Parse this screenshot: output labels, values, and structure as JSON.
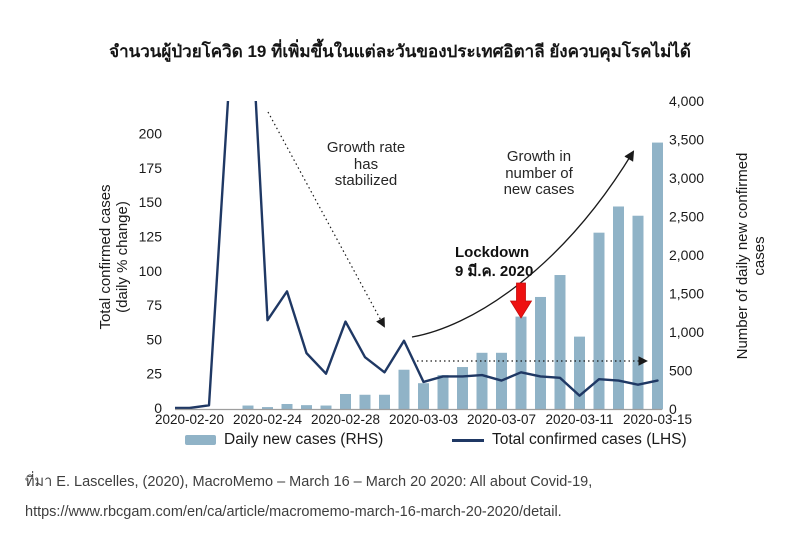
{
  "title": "จำนวนผู้ป่วยโควิด 19 ที่เพิ่มขึ้นในแต่ละวันของประเทศอิตาลี ยังควบคุมโรคไม่ได้",
  "colors": {
    "bar": "#90b3c7",
    "line": "#1f3864",
    "lockdown_arrow": "#ee1111",
    "annotation_arrow": "#1a1a1a",
    "axis_text": "#1a1a1a",
    "baseline": "#9e9e9e",
    "footer_text": "#3e3e3e"
  },
  "chart_data": {
    "type": "combo",
    "categories": [
      "2020-02-20",
      "2020-02-21",
      "2020-02-22",
      "2020-02-23",
      "2020-02-24",
      "2020-02-25",
      "2020-02-26",
      "2020-02-27",
      "2020-02-28",
      "2020-02-29",
      "2020-03-01",
      "2020-03-02",
      "2020-03-03",
      "2020-03-04",
      "2020-03-05",
      "2020-03-06",
      "2020-03-07",
      "2020-03-08",
      "2020-03-09",
      "2020-03-10",
      "2020-03-11",
      "2020-03-12",
      "2020-03-13",
      "2020-03-14",
      "2020-03-15"
    ],
    "x_tick_labels": [
      "2020-02-20",
      "2020-02-24",
      "2020-02-28",
      "2020-03-03",
      "2020-03-07",
      "2020-03-11",
      "2020-03-15"
    ],
    "x_tick_days": [
      0,
      4,
      8,
      12,
      16,
      20,
      24
    ],
    "series": [
      {
        "name": "Daily new cases (RHS)",
        "type": "bar",
        "axis": "right",
        "values": [
          0,
          0,
          0,
          45,
          25,
          65,
          50,
          45,
          195,
          185,
          185,
          510,
          335,
          440,
          545,
          730,
          730,
          1200,
          1455,
          1740,
          940,
          2290,
          2630,
          2510,
          3460
        ]
      },
      {
        "name": "Total confirmed cases (LHS)",
        "type": "line",
        "axis": "left",
        "values": [
          0,
          2,
          230,
          330,
          64,
          85,
          40,
          25,
          63,
          37,
          26,
          49,
          19,
          23,
          23,
          24,
          20,
          26,
          23,
          22,
          9,
          21,
          20,
          17,
          20
        ],
        "note_clipped_above": 224
      }
    ],
    "left_axis": {
      "label_line1": "Total confirmed cases",
      "label_line2": "(daily % change)",
      "ticks": [
        0,
        25,
        50,
        75,
        100,
        125,
        150,
        175,
        200
      ],
      "ylim": [
        0,
        224
      ]
    },
    "right_axis": {
      "label_line1": "Number of daily new confirmed",
      "label_line2": "cases",
      "ticks": [
        0,
        500,
        1000,
        1500,
        2000,
        2500,
        3000,
        3500,
        4000
      ],
      "ylim": [
        0,
        4000
      ]
    },
    "grid": "off",
    "legend_position": "bottom"
  },
  "annotations": {
    "growth_rate": {
      "line1": "Growth rate",
      "line2": "has",
      "line3": "stabilized"
    },
    "growth_new": {
      "line1": "Growth in",
      "line2": "number of",
      "line3": "new cases"
    },
    "lockdown": {
      "line1": "Lockdown",
      "line2": "9 มี.ค. 2020"
    }
  },
  "legend": {
    "bar_label": "Daily new cases (RHS)",
    "line_label": "Total confirmed cases (LHS)"
  },
  "footer": {
    "line1": "ที่มา E. Lascelles, (2020), MacroMemo – March 16 – March 20 2020: All about Covid-19,",
    "line2": "https://www.rbcgam.com/en/ca/article/macromemo-march-16-march-20-2020/detail."
  }
}
